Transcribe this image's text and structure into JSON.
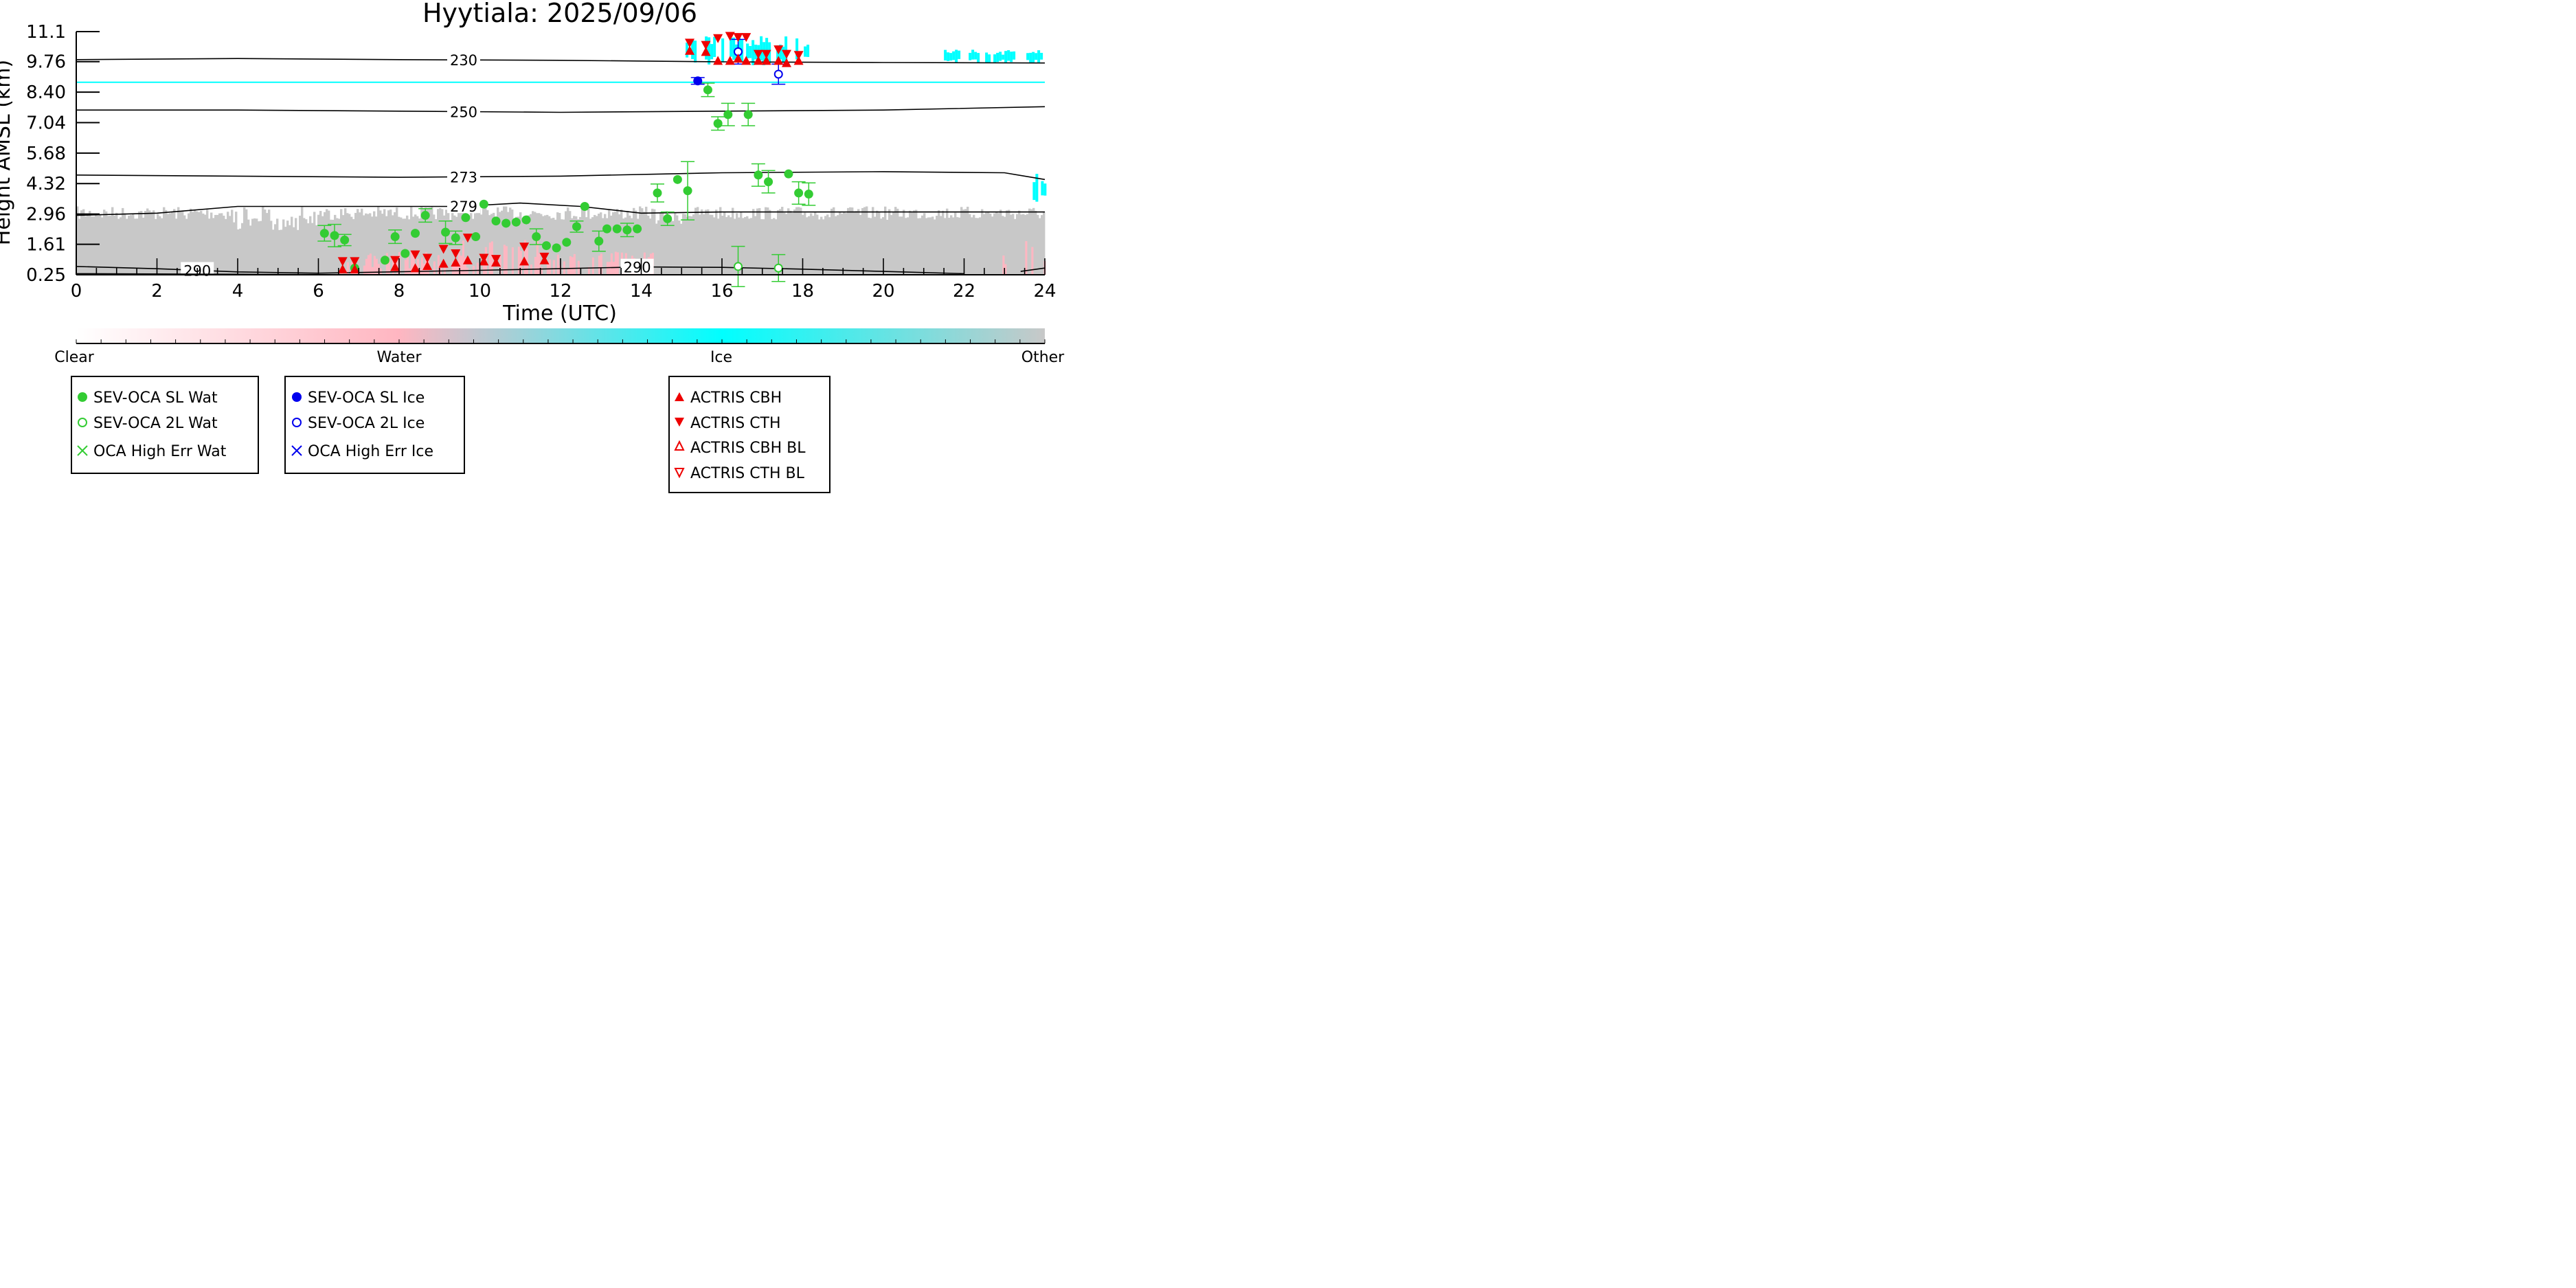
{
  "chart_data": {
    "type": "scatter",
    "title": "Hyytiala: 2025/09/06",
    "xlabel": "Time (UTC)",
    "ylabel": "Height AMSL (km)",
    "xlim": [
      0,
      24
    ],
    "ylim": [
      0.25,
      11.1
    ],
    "x_ticks": [
      0,
      2,
      4,
      6,
      8,
      10,
      12,
      14,
      16,
      18,
      20,
      22,
      24
    ],
    "y_ticks": [
      0.25,
      1.61,
      2.96,
      4.32,
      5.68,
      7.04,
      8.4,
      9.76,
      11.1
    ],
    "y_tick_labels": [
      "0.25",
      "1.61",
      "2.96",
      "4.32",
      "5.68",
      "7.04",
      "8.40",
      "9.76",
      "11.1"
    ],
    "grid": false,
    "background_classification": {
      "description_colors": {
        "Water": "#ffb6c1",
        "Ice": "#00ffff",
        "Other": "#c8c8c8"
      },
      "ice_bands": [
        {
          "x0": 15.1,
          "x1": 18.1,
          "y0": 9.6,
          "y1": 10.9
        },
        {
          "x0": 21.5,
          "x1": 24.0,
          "y0": 9.7,
          "y1": 10.3
        },
        {
          "x0": 23.7,
          "x1": 24.0,
          "y0": 3.4,
          "y1": 4.8
        },
        {
          "x0": 0.0,
          "x1": 24.0,
          "y0": 8.84,
          "y1": 8.84
        }
      ],
      "other_region": {
        "x0": 0.0,
        "x1": 24.0,
        "y0": 0.25,
        "y1": 3.3
      }
    },
    "contours": [
      {
        "label": "230",
        "label_x": 9.6,
        "points": [
          [
            0,
            9.85
          ],
          [
            4,
            9.9
          ],
          [
            8,
            9.85
          ],
          [
            12,
            9.82
          ],
          [
            16,
            9.75
          ],
          [
            20,
            9.72
          ],
          [
            24,
            9.7
          ]
        ]
      },
      {
        "label": "250",
        "label_x": 9.6,
        "points": [
          [
            0,
            7.6
          ],
          [
            4,
            7.6
          ],
          [
            8,
            7.55
          ],
          [
            12,
            7.5
          ],
          [
            16,
            7.55
          ],
          [
            20,
            7.6
          ],
          [
            24,
            7.75
          ]
        ]
      },
      {
        "label": "273",
        "label_x": 9.6,
        "points": [
          [
            0,
            4.7
          ],
          [
            4,
            4.65
          ],
          [
            8,
            4.6
          ],
          [
            12,
            4.65
          ],
          [
            16,
            4.8
          ],
          [
            20,
            4.85
          ],
          [
            23,
            4.8
          ],
          [
            24,
            4.5
          ]
        ]
      },
      {
        "label": "279",
        "label_x": 9.6,
        "points": [
          [
            0,
            2.9
          ],
          [
            2,
            3.0
          ],
          [
            4,
            3.3
          ],
          [
            7,
            3.3
          ],
          [
            9.5,
            3.3
          ],
          [
            11,
            3.45
          ],
          [
            12.5,
            3.3
          ],
          [
            14,
            3.0
          ],
          [
            16,
            3.05
          ],
          [
            20,
            3.05
          ],
          [
            24,
            3.05
          ]
        ]
      },
      {
        "label": "290",
        "label_x": 3.0,
        "points": [
          [
            0,
            0.62
          ],
          [
            2,
            0.52
          ],
          [
            4,
            0.38
          ],
          [
            6,
            0.32
          ]
        ]
      },
      {
        "label": "290",
        "label_x": 13.9,
        "points": [
          [
            6,
            0.32
          ],
          [
            10,
            0.45
          ],
          [
            14,
            0.6
          ],
          [
            16,
            0.58
          ],
          [
            18,
            0.5
          ],
          [
            20,
            0.4
          ],
          [
            22,
            0.3
          ]
        ]
      },
      {
        "label": "",
        "label_x": 0,
        "points": [
          [
            0,
            0.3
          ],
          [
            3,
            0.28
          ],
          [
            6,
            0.26
          ]
        ]
      },
      {
        "label": "",
        "label_x": 0,
        "points": [
          [
            23.4,
            0.4
          ],
          [
            24,
            0.55
          ]
        ]
      }
    ],
    "series": [
      {
        "name": "SEV-OCA SL Wat",
        "color": "#33cc33",
        "marker": "filled-circle",
        "points": [
          [
            6.15,
            2.1,
            0.35
          ],
          [
            6.4,
            2.0,
            0.5
          ],
          [
            6.65,
            1.8,
            0.25
          ],
          [
            6.9,
            0.55,
            0
          ],
          [
            7.65,
            0.9,
            0
          ],
          [
            7.9,
            1.95,
            0.3
          ],
          [
            8.15,
            1.2,
            0
          ],
          [
            8.4,
            2.1,
            0
          ],
          [
            8.65,
            2.9,
            0.3
          ],
          [
            9.15,
            2.15,
            0.5
          ],
          [
            9.4,
            1.9,
            0.3
          ],
          [
            9.65,
            2.8,
            0
          ],
          [
            9.9,
            1.95,
            0
          ],
          [
            10.1,
            3.4,
            0
          ],
          [
            10.4,
            2.65,
            0
          ],
          [
            10.65,
            2.55,
            0
          ],
          [
            10.9,
            2.6,
            0
          ],
          [
            11.15,
            2.7,
            0
          ],
          [
            11.4,
            1.95,
            0.35
          ],
          [
            11.65,
            1.55,
            0
          ],
          [
            11.9,
            1.45,
            0
          ],
          [
            12.15,
            1.7,
            0
          ],
          [
            12.4,
            2.4,
            0.25
          ],
          [
            12.6,
            3.3,
            0
          ],
          [
            12.95,
            1.75,
            0.45
          ],
          [
            13.15,
            2.3,
            0
          ],
          [
            13.4,
            2.3,
            0
          ],
          [
            13.65,
            2.25,
            0.3
          ],
          [
            13.9,
            2.3,
            0
          ],
          [
            14.4,
            3.9,
            0.4
          ],
          [
            14.65,
            2.75,
            0.3
          ],
          [
            14.9,
            4.5,
            0
          ],
          [
            15.15,
            4.0,
            1.3
          ],
          [
            15.65,
            8.5,
            0.3
          ],
          [
            15.9,
            7.0,
            0.3
          ],
          [
            16.15,
            7.4,
            0.5
          ],
          [
            16.65,
            7.4,
            0.5
          ],
          [
            16.9,
            4.7,
            0.5
          ],
          [
            17.15,
            4.4,
            0.5
          ],
          [
            17.65,
            4.75,
            0
          ],
          [
            17.9,
            3.9,
            0.5
          ],
          [
            18.15,
            3.85,
            0.5
          ]
        ]
      },
      {
        "name": "SEV-OCA 2L Wat",
        "color": "#33cc33",
        "marker": "open-circle",
        "points": [
          [
            16.4,
            0.62,
            0.9
          ],
          [
            17.4,
            0.55,
            0.6
          ]
        ]
      },
      {
        "name": "OCA High Err Wat",
        "color": "#33cc33",
        "marker": "x",
        "points": []
      },
      {
        "name": "SEV-OCA SL Ice",
        "color": "#0000ee",
        "marker": "filled-circle",
        "points": [
          [
            15.4,
            8.9,
            0.15
          ]
        ]
      },
      {
        "name": "SEV-OCA 2L Ice",
        "color": "#0000ee",
        "marker": "open-circle",
        "points": [
          [
            16.4,
            10.2,
            0.55
          ],
          [
            17.4,
            9.2,
            0.45
          ]
        ]
      },
      {
        "name": "OCA High Err Ice",
        "color": "#0000ee",
        "marker": "x",
        "points": []
      },
      {
        "name": "ACTRIS CBH",
        "color": "#ee0000",
        "marker": "triangle-up",
        "points": [
          [
            6.6,
            0.5
          ],
          [
            6.9,
            0.5
          ],
          [
            7.9,
            0.6
          ],
          [
            8.4,
            0.55
          ],
          [
            8.7,
            0.65
          ],
          [
            9.1,
            0.75
          ],
          [
            9.4,
            0.8
          ],
          [
            9.7,
            0.9
          ],
          [
            10.1,
            0.85
          ],
          [
            10.4,
            0.8
          ],
          [
            11.1,
            0.85
          ],
          [
            11.6,
            0.9
          ],
          [
            15.2,
            10.25
          ],
          [
            15.6,
            10.2
          ],
          [
            15.9,
            9.8
          ],
          [
            16.2,
            9.8
          ],
          [
            16.4,
            9.9
          ],
          [
            16.6,
            9.8
          ],
          [
            16.9,
            9.8
          ],
          [
            17.1,
            9.8
          ],
          [
            17.4,
            9.8
          ],
          [
            17.6,
            9.7
          ],
          [
            17.9,
            9.8
          ]
        ]
      },
      {
        "name": "ACTRIS CTH",
        "color": "#ee0000",
        "marker": "triangle-down",
        "points": [
          [
            6.6,
            0.85
          ],
          [
            6.9,
            0.85
          ],
          [
            7.9,
            0.9
          ],
          [
            8.4,
            1.15
          ],
          [
            8.7,
            1.0
          ],
          [
            9.1,
            1.4
          ],
          [
            9.4,
            1.2
          ],
          [
            9.7,
            1.9
          ],
          [
            10.1,
            1.0
          ],
          [
            10.4,
            0.95
          ],
          [
            11.1,
            1.5
          ],
          [
            11.6,
            1.05
          ],
          [
            15.2,
            10.6
          ],
          [
            15.6,
            10.5
          ],
          [
            15.9,
            10.8
          ],
          [
            16.2,
            10.9
          ],
          [
            16.4,
            10.85
          ],
          [
            16.6,
            10.85
          ],
          [
            16.9,
            10.1
          ],
          [
            17.1,
            10.1
          ],
          [
            17.4,
            10.3
          ],
          [
            17.6,
            10.1
          ],
          [
            17.9,
            10.05
          ]
        ]
      },
      {
        "name": "ACTRIS CBH BL",
        "color": "#ee0000",
        "marker": "open-triangle-up",
        "points": []
      },
      {
        "name": "ACTRIS CTH BL",
        "color": "#ee0000",
        "marker": "open-triangle-down",
        "points": []
      }
    ],
    "colorbar": {
      "labels": [
        "Clear",
        "Water",
        "Ice",
        "Other"
      ],
      "colors": [
        "#ffffff",
        "#ffb6c1",
        "#00ffff",
        "#c8c8c8"
      ]
    },
    "legends": [
      {
        "entries": [
          "SEV-OCA SL Wat",
          "SEV-OCA 2L Wat",
          "OCA High Err Wat"
        ]
      },
      {
        "entries": [
          "SEV-OCA SL Ice",
          "SEV-OCA 2L Ice",
          "OCA High Err Ice"
        ]
      },
      {
        "entries": [
          "ACTRIS CBH",
          "ACTRIS CTH",
          "ACTRIS CBH BL",
          "ACTRIS CTH BL"
        ]
      }
    ]
  }
}
